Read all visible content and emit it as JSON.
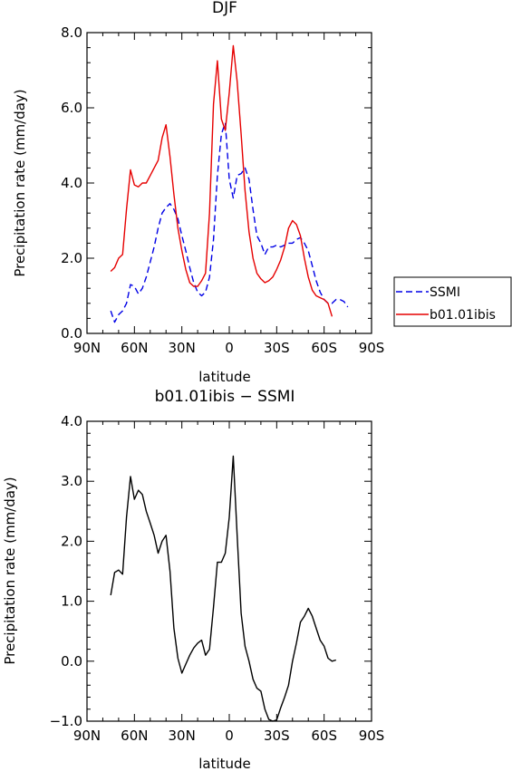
{
  "chart_data": [
    {
      "type": "line",
      "title": "DJF",
      "xlabel": "latitude",
      "ylabel": "Precipitation rate (mm/day)",
      "xlim": [
        -90,
        90
      ],
      "ylim": [
        0,
        8
      ],
      "x_direction": "north-to-south",
      "x_tick_values": [
        -90,
        -60,
        -30,
        0,
        30,
        60,
        90
      ],
      "x_tick_labels": [
        "90N",
        "60N",
        "30N",
        "0",
        "30S",
        "60S",
        "90S"
      ],
      "y_tick_values": [
        0,
        2,
        4,
        6,
        8
      ],
      "y_tick_labels": [
        "0.0",
        "2.0",
        "4.0",
        "6.0",
        "8.0"
      ],
      "legend_position": "right",
      "series": [
        {
          "name": "SSMI",
          "color": "#0000e6",
          "style": "dashed",
          "points": [
            [
              -75,
              0.6
            ],
            [
              -72.5,
              0.3
            ],
            [
              -70,
              0.5
            ],
            [
              -67.5,
              0.6
            ],
            [
              -65,
              0.8
            ],
            [
              -62.5,
              1.3
            ],
            [
              -60,
              1.25
            ],
            [
              -57.5,
              1.05
            ],
            [
              -55,
              1.2
            ],
            [
              -52.5,
              1.5
            ],
            [
              -50,
              1.9
            ],
            [
              -47.5,
              2.3
            ],
            [
              -45,
              2.8
            ],
            [
              -42.5,
              3.2
            ],
            [
              -40,
              3.35
            ],
            [
              -37.5,
              3.45
            ],
            [
              -35,
              3.3
            ],
            [
              -32.5,
              3.05
            ],
            [
              -30,
              2.6
            ],
            [
              -27.5,
              2.2
            ],
            [
              -25,
              1.75
            ],
            [
              -22.5,
              1.35
            ],
            [
              -20,
              1.1
            ],
            [
              -17.5,
              1.0
            ],
            [
              -15,
              1.1
            ],
            [
              -12.5,
              1.5
            ],
            [
              -10,
              2.5
            ],
            [
              -7.5,
              4.2
            ],
            [
              -5,
              5.3
            ],
            [
              -2.5,
              5.6
            ],
            [
              0,
              4.1
            ],
            [
              2.5,
              3.6
            ],
            [
              5,
              4.2
            ],
            [
              7.5,
              4.25
            ],
            [
              10,
              4.4
            ],
            [
              12.5,
              4.1
            ],
            [
              15,
              3.3
            ],
            [
              17.5,
              2.6
            ],
            [
              20,
              2.4
            ],
            [
              22.5,
              2.1
            ],
            [
              25,
              2.3
            ],
            [
              27.5,
              2.3
            ],
            [
              30,
              2.35
            ],
            [
              32.5,
              2.3
            ],
            [
              35,
              2.35
            ],
            [
              37.5,
              2.4
            ],
            [
              40,
              2.4
            ],
            [
              42.5,
              2.5
            ],
            [
              45,
              2.55
            ],
            [
              47.5,
              2.4
            ],
            [
              50,
              2.2
            ],
            [
              52.5,
              1.8
            ],
            [
              55,
              1.4
            ],
            [
              57.5,
              1.1
            ],
            [
              60,
              0.9
            ],
            [
              62.5,
              0.8
            ],
            [
              65,
              0.8
            ],
            [
              67.5,
              0.9
            ],
            [
              70,
              0.9
            ],
            [
              72.5,
              0.85
            ],
            [
              75,
              0.7
            ]
          ]
        },
        {
          "name": "b01.01ibis",
          "color": "#e60000",
          "style": "solid",
          "points": [
            [
              -75,
              1.65
            ],
            [
              -72.5,
              1.75
            ],
            [
              -70,
              2.0
            ],
            [
              -67.5,
              2.1
            ],
            [
              -65,
              3.3
            ],
            [
              -62.5,
              4.35
            ],
            [
              -60,
              3.95
            ],
            [
              -57.5,
              3.9
            ],
            [
              -55,
              4.0
            ],
            [
              -52.5,
              4.0
            ],
            [
              -50,
              4.2
            ],
            [
              -47.5,
              4.4
            ],
            [
              -45,
              4.6
            ],
            [
              -42.5,
              5.2
            ],
            [
              -40,
              5.55
            ],
            [
              -37.5,
              4.7
            ],
            [
              -35,
              3.7
            ],
            [
              -32.5,
              2.8
            ],
            [
              -30,
              2.2
            ],
            [
              -27.5,
              1.7
            ],
            [
              -25,
              1.35
            ],
            [
              -22.5,
              1.25
            ],
            [
              -20,
              1.25
            ],
            [
              -17.5,
              1.4
            ],
            [
              -15,
              1.6
            ],
            [
              -12.5,
              3.2
            ],
            [
              -10,
              6.1
            ],
            [
              -7.5,
              7.25
            ],
            [
              -5,
              5.7
            ],
            [
              -2.5,
              5.4
            ],
            [
              0,
              6.4
            ],
            [
              2.5,
              7.65
            ],
            [
              5,
              6.7
            ],
            [
              7.5,
              5.3
            ],
            [
              10,
              3.8
            ],
            [
              12.5,
              2.7
            ],
            [
              15,
              2.0
            ],
            [
              17.5,
              1.6
            ],
            [
              20,
              1.45
            ],
            [
              22.5,
              1.35
            ],
            [
              25,
              1.4
            ],
            [
              27.5,
              1.5
            ],
            [
              30,
              1.7
            ],
            [
              32.5,
              1.95
            ],
            [
              35,
              2.3
            ],
            [
              37.5,
              2.8
            ],
            [
              40,
              3.0
            ],
            [
              42.5,
              2.9
            ],
            [
              45,
              2.6
            ],
            [
              47.5,
              2.0
            ],
            [
              50,
              1.5
            ],
            [
              52.5,
              1.15
            ],
            [
              55,
              1.0
            ],
            [
              57.5,
              0.95
            ],
            [
              60,
              0.9
            ],
            [
              62.5,
              0.8
            ],
            [
              65,
              0.45
            ]
          ]
        }
      ]
    },
    {
      "type": "line",
      "title": "b01.01ibis − SSMI",
      "xlabel": "latitude",
      "ylabel": "Precipitation rate (mm/day)",
      "xlim": [
        -90,
        90
      ],
      "ylim": [
        -1,
        4
      ],
      "x_direction": "north-to-south",
      "x_tick_values": [
        -90,
        -60,
        -30,
        0,
        30,
        60,
        90
      ],
      "x_tick_labels": [
        "90N",
        "60N",
        "30N",
        "0",
        "30S",
        "60S",
        "90S"
      ],
      "y_tick_values": [
        -1,
        0,
        1,
        2,
        3,
        4
      ],
      "y_tick_labels": [
        "−1.0",
        "0.0",
        "1.0",
        "2.0",
        "3.0",
        "4.0"
      ],
      "series": [
        {
          "color": "#000000",
          "style": "solid",
          "points": [
            [
              -75,
              1.1
            ],
            [
              -72.5,
              1.48
            ],
            [
              -70,
              1.52
            ],
            [
              -67.5,
              1.45
            ],
            [
              -65,
              2.4
            ],
            [
              -62.5,
              3.08
            ],
            [
              -60,
              2.7
            ],
            [
              -57.5,
              2.85
            ],
            [
              -55,
              2.78
            ],
            [
              -52.5,
              2.5
            ],
            [
              -50,
              2.3
            ],
            [
              -47.5,
              2.1
            ],
            [
              -45,
              1.8
            ],
            [
              -42.5,
              2.0
            ],
            [
              -40,
              2.1
            ],
            [
              -37.5,
              1.5
            ],
            [
              -35,
              0.55
            ],
            [
              -32.5,
              0.05
            ],
            [
              -30,
              -0.2
            ],
            [
              -27.5,
              -0.05
            ],
            [
              -25,
              0.1
            ],
            [
              -22.5,
              0.22
            ],
            [
              -20,
              0.3
            ],
            [
              -17.5,
              0.35
            ],
            [
              -15,
              0.1
            ],
            [
              -12.5,
              0.2
            ],
            [
              -10,
              0.9
            ],
            [
              -7.5,
              1.65
            ],
            [
              -5,
              1.65
            ],
            [
              -2.5,
              1.8
            ],
            [
              0,
              2.4
            ],
            [
              2.5,
              3.42
            ],
            [
              5,
              2.1
            ],
            [
              7.5,
              0.8
            ],
            [
              10,
              0.25
            ],
            [
              12.5,
              0.0
            ],
            [
              15,
              -0.3
            ],
            [
              17.5,
              -0.45
            ],
            [
              20,
              -0.5
            ],
            [
              22.5,
              -0.8
            ],
            [
              25,
              -0.97
            ],
            [
              27.5,
              -1.0
            ],
            [
              30,
              -0.98
            ],
            [
              32.5,
              -0.78
            ],
            [
              35,
              -0.6
            ],
            [
              37.5,
              -0.4
            ],
            [
              40,
              0.0
            ],
            [
              42.5,
              0.3
            ],
            [
              45,
              0.65
            ],
            [
              47.5,
              0.75
            ],
            [
              50,
              0.88
            ],
            [
              52.5,
              0.75
            ],
            [
              55,
              0.55
            ],
            [
              57.5,
              0.35
            ],
            [
              60,
              0.25
            ],
            [
              62.5,
              0.05
            ],
            [
              65,
              0.0
            ],
            [
              67.5,
              0.02
            ]
          ]
        }
      ]
    }
  ]
}
